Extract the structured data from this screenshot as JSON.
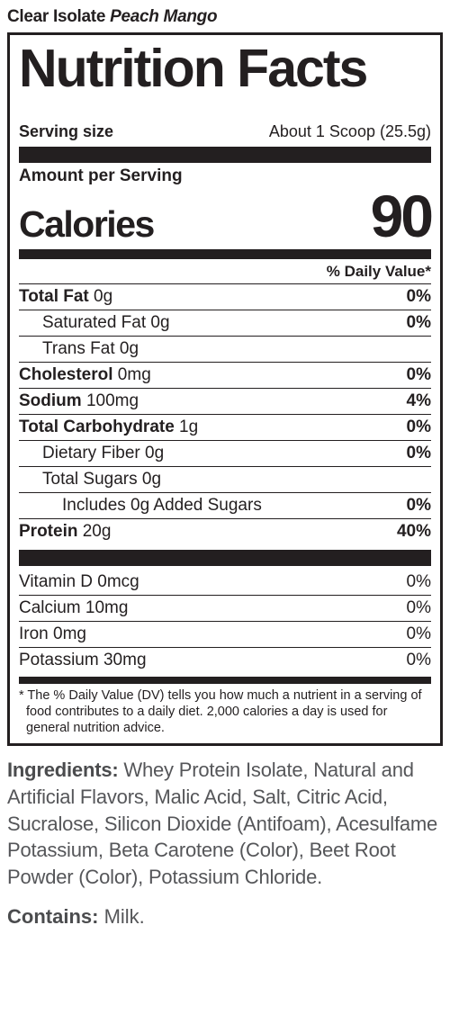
{
  "product": {
    "name": "Clear Isolate",
    "flavor": "Peach Mango"
  },
  "title": "Nutrition Facts",
  "serving": {
    "label": "Serving size",
    "value": "About 1 Scoop (25.5g)"
  },
  "amount_per_serving": "Amount per Serving",
  "calories": {
    "label": "Calories",
    "value": "90"
  },
  "dv_header": "% Daily Value*",
  "nutrients_main": [
    {
      "name": "Total Fat",
      "amt": "0g",
      "dv": "0%",
      "bold": true,
      "indent": 0
    },
    {
      "name": "Saturated Fat",
      "amt": "0g",
      "dv": "0%",
      "bold": false,
      "indent": 1
    },
    {
      "name": "Trans Fat",
      "amt": "0g",
      "dv": "",
      "bold": false,
      "indent": 1
    },
    {
      "name": "Cholesterol",
      "amt": "0mg",
      "dv": "0%",
      "bold": true,
      "indent": 0
    },
    {
      "name": "Sodium",
      "amt": "100mg",
      "dv": "4%",
      "bold": true,
      "indent": 0
    },
    {
      "name": "Total Carbohydrate",
      "amt": "1g",
      "dv": "0%",
      "bold": true,
      "indent": 0
    },
    {
      "name": "Dietary Fiber",
      "amt": "0g",
      "dv": "0%",
      "bold": false,
      "indent": 1
    },
    {
      "name": "Total Sugars",
      "amt": "0g",
      "dv": "",
      "bold": false,
      "indent": 1
    },
    {
      "name": "Includes 0g Added Sugars",
      "amt": "",
      "dv": "0%",
      "bold": false,
      "indent": 2
    },
    {
      "name": "Protein",
      "amt": "20g",
      "dv": "40%",
      "bold": true,
      "indent": 0,
      "noborder": true
    }
  ],
  "nutrients_micro": [
    {
      "name": "Vitamin D",
      "amt": "0mcg",
      "dv": "0%"
    },
    {
      "name": "Calcium",
      "amt": "10mg",
      "dv": "0%"
    },
    {
      "name": "Iron",
      "amt": "0mg",
      "dv": "0%"
    },
    {
      "name": "Potassium",
      "amt": "30mg",
      "dv": "0%",
      "noborder": true
    }
  ],
  "footnote": "* The % Daily Value (DV) tells you how much a nutrient in a serving of food contributes to a daily diet. 2,000 calories a  day is used for general nutrition advice.",
  "ingredients": {
    "label": "Ingredients:",
    "text": "Whey Protein Isolate, Natural and Artificial Flavors, Malic Acid, Salt, Citric Acid, Sucralose, Silicon Dioxide (Antifoam), Acesulfame Potassium, Beta Carotene (Color), Beet Root Powder (Color), Potassium Chloride."
  },
  "contains": {
    "label": "Contains:",
    "text": "Milk."
  }
}
